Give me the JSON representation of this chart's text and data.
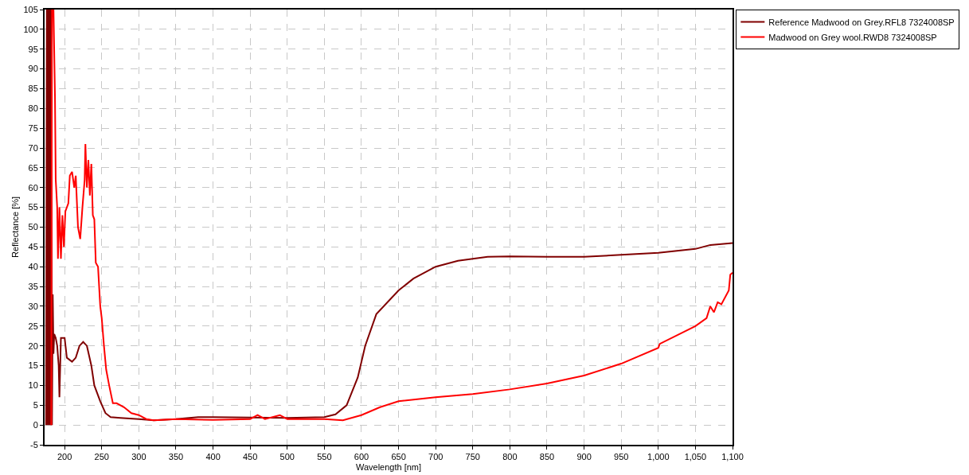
{
  "chart_data": {
    "type": "line",
    "xlabel": "Wavelength [nm]",
    "ylabel": "Reflectance [%]",
    "xlim": [
      173,
      1100
    ],
    "xticks": [
      200,
      250,
      300,
      350,
      400,
      450,
      500,
      550,
      600,
      650,
      700,
      750,
      800,
      850,
      900,
      950,
      {
        "value": 1000,
        "label": "1,000"
      },
      {
        "value": 1050,
        "label": "1,050"
      },
      {
        "value": 1100,
        "label": "1,100"
      }
    ],
    "ylim": [
      -5,
      105
    ],
    "yticks": [
      -5,
      0,
      5,
      10,
      15,
      20,
      25,
      30,
      35,
      40,
      45,
      50,
      55,
      60,
      65,
      70,
      75,
      80,
      85,
      90,
      95,
      100,
      105
    ],
    "grid": true,
    "legend": "top right",
    "marker": "none",
    "line_style": "solid",
    "series": [
      {
        "name": "Reference Madwood on Grey.RFL8 7324008SP",
        "color": "#800000",
        "x": [
          175,
          176,
          177,
          178,
          179,
          180,
          181,
          182,
          183,
          184,
          185,
          186,
          188,
          190,
          192,
          193,
          195,
          197,
          200,
          203,
          210,
          215,
          220,
          225,
          230,
          236,
          240,
          248,
          255,
          262,
          275,
          300,
          320,
          350,
          380,
          400,
          450,
          500,
          550,
          565,
          580,
          595,
          605,
          620,
          650,
          670,
          700,
          730,
          770,
          800,
          850,
          900,
          950,
          1000,
          1050,
          1070,
          1100
        ],
        "values": [
          0,
          105,
          0,
          105,
          0,
          105,
          0,
          105,
          0,
          33,
          18,
          23,
          22,
          20,
          15,
          7,
          22,
          22,
          22,
          17,
          16,
          17,
          20,
          21,
          20,
          15,
          10,
          6,
          3,
          2,
          1.8,
          1.5,
          1.2,
          1.5,
          2,
          2,
          1.9,
          1.8,
          2,
          2.7,
          5,
          12,
          20,
          28,
          34,
          37,
          40,
          41.5,
          42.5,
          42.6,
          42.5,
          42.5,
          43,
          43.5,
          44.5,
          45.5,
          46
        ]
      },
      {
        "name": "Madwood on Grey wool.RWD8 7324008SP",
        "color": "#ff0000",
        "x": [
          182,
          183,
          185,
          187,
          188,
          190,
          191,
          193,
          195,
          197,
          199,
          201,
          205,
          207,
          210,
          213,
          215,
          218,
          221,
          224,
          227,
          228,
          230,
          232,
          234,
          236,
          238,
          240,
          242,
          245,
          248,
          250,
          253,
          256,
          260,
          265,
          270,
          280,
          290,
          300,
          310,
          320,
          330,
          350,
          400,
          450,
          460,
          470,
          490,
          500,
          550,
          575,
          600,
          625,
          650,
          700,
          750,
          800,
          850,
          900,
          950,
          1000,
          1002,
          1050,
          1065,
          1070,
          1075,
          1080,
          1085,
          1095,
          1097,
          1100
        ],
        "values": [
          0,
          105,
          105,
          83,
          62,
          55,
          42,
          55,
          42,
          53,
          45,
          54,
          56,
          63,
          64,
          60,
          63,
          50,
          47,
          55,
          62,
          71,
          60,
          67,
          58,
          66,
          53,
          52,
          41,
          40,
          30,
          27,
          20,
          14,
          10,
          5.5,
          5.5,
          4.5,
          3,
          2.5,
          1.5,
          1.2,
          1.3,
          1.5,
          1.3,
          1.5,
          2.5,
          1.5,
          2.5,
          1.5,
          1.5,
          1.2,
          2.5,
          4.5,
          6,
          7,
          7.8,
          9,
          10.5,
          12.5,
          15.5,
          19.5,
          20.5,
          25,
          27,
          30,
          28.5,
          31,
          30.5,
          34,
          38,
          38.5
        ]
      }
    ]
  }
}
